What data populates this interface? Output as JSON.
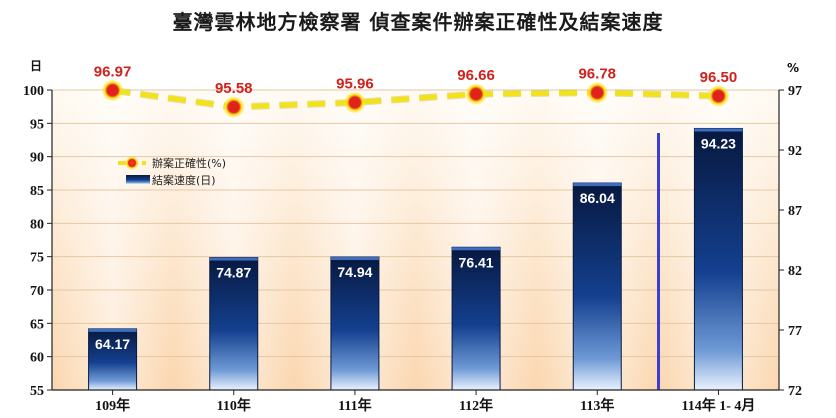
{
  "title": "臺灣雲林地方檢察署 偵查案件辦案正確性及結案速度",
  "chart_data": {
    "type": "bar",
    "title": "臺灣雲林地方檢察署 偵查案件辦案正確性及結案速度",
    "categories": [
      "109年",
      "110年",
      "111年",
      "112年",
      "113年",
      "114年 1- 4月"
    ],
    "series": [
      {
        "name": "結案速度(日)",
        "type": "bar",
        "axis": "left",
        "values": [
          64.17,
          74.87,
          74.94,
          76.41,
          86.04,
          94.23
        ]
      },
      {
        "name": "辦案正確性(%)",
        "type": "line",
        "axis": "right",
        "values": [
          96.97,
          95.58,
          95.96,
          96.66,
          96.78,
          96.5
        ]
      }
    ],
    "y_left": {
      "label": "日",
      "range": [
        55,
        100
      ],
      "ticks": [
        55,
        60,
        65,
        70,
        75,
        80,
        85,
        90,
        95,
        100
      ]
    },
    "y_right": {
      "label": "%",
      "range": [
        72,
        97
      ],
      "ticks": [
        72,
        77,
        82,
        87,
        92,
        97
      ]
    },
    "legend_position": "upper-left",
    "colors": {
      "bar": "#0b2a6b",
      "line": "#f2e21a",
      "marker": "#d0211c",
      "line_label": "#d0211c",
      "bar_label": "#ffffff"
    }
  }
}
